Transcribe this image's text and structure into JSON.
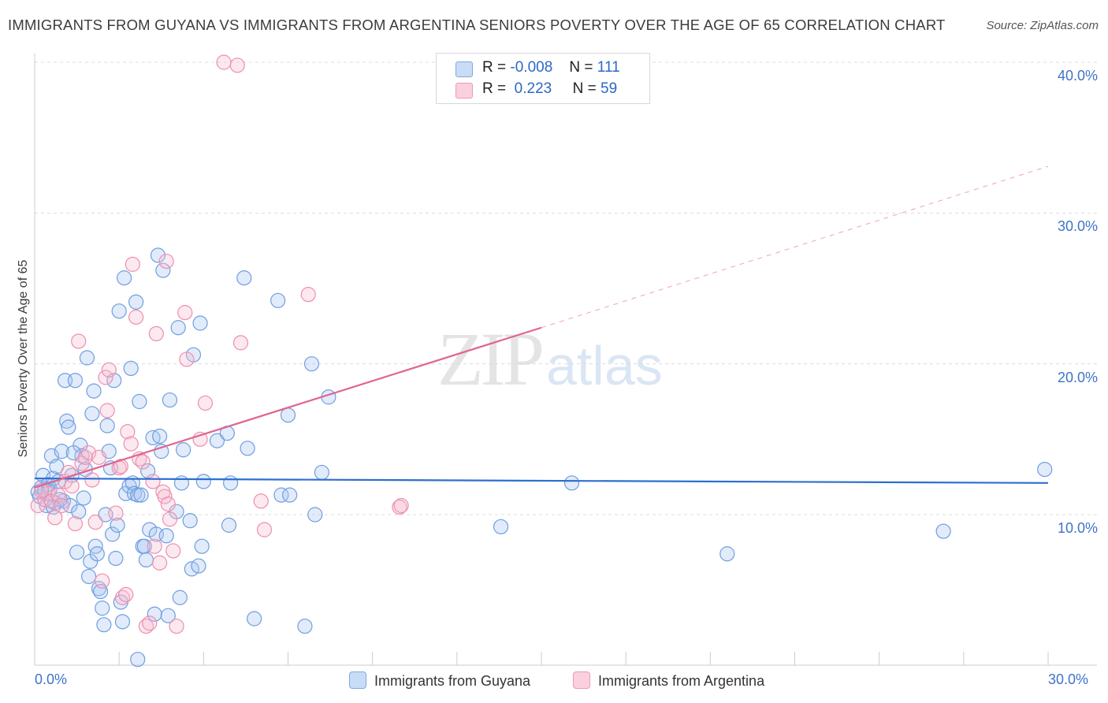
{
  "title": "IMMIGRANTS FROM GUYANA VS IMMIGRANTS FROM ARGENTINA SENIORS POVERTY OVER THE AGE OF 65 CORRELATION CHART",
  "source": "Source: ZipAtlas.com",
  "watermark": {
    "zip": "ZIP",
    "atlas": "atlas"
  },
  "colors": {
    "guyana_fill": "#a9c6f0",
    "guyana_stroke": "#6f9ee0",
    "guyana_line": "#2d6fd0",
    "argentina_fill": "#f6bcd0",
    "argentina_stroke": "#ec8fb0",
    "argentina_line": "#e0658f",
    "tick_text": "#3f73c8"
  },
  "legend": {
    "rows": [
      {
        "r_label": "R =",
        "r_value": "-0.008",
        "n_label": "N =",
        "n_value": "111"
      },
      {
        "r_label": "R =",
        "r_value": " 0.223",
        "n_label": "N =",
        "n_value": "59"
      }
    ]
  },
  "chart_data": {
    "type": "scatter",
    "title": "IMMIGRANTS FROM GUYANA VS IMMIGRANTS FROM ARGENTINA SENIORS POVERTY OVER THE AGE OF 65 CORRELATION CHART",
    "xlabel": "",
    "ylabel": "Seniors Poverty Over the Age of 65",
    "xlim": [
      0,
      30
    ],
    "ylim": [
      0,
      40
    ],
    "x_tick_labels": [
      "0.0%",
      "30.0%"
    ],
    "y_ticks": [
      10,
      20,
      30,
      40
    ],
    "y_tick_labels": [
      "10.0%",
      "20.0%",
      "30.0%",
      "40.0%"
    ],
    "grid": true,
    "legend_position": "bottom",
    "series": [
      {
        "name": "Immigrants from Guyana",
        "r": -0.008,
        "n": 111,
        "trend": {
          "x": [
            0,
            30
          ],
          "y": [
            12.4,
            12.1
          ]
        },
        "points": [
          [
            0.1,
            11.5
          ],
          [
            0.15,
            11.2
          ],
          [
            0.2,
            11.8
          ],
          [
            0.25,
            12.6
          ],
          [
            0.3,
            11.6
          ],
          [
            0.35,
            10.6
          ],
          [
            0.4,
            12.0
          ],
          [
            0.45,
            11.7
          ],
          [
            0.5,
            13.9
          ],
          [
            0.55,
            12.4
          ],
          [
            0.6,
            10.8
          ],
          [
            0.65,
            13.2
          ],
          [
            0.7,
            12.2
          ],
          [
            0.8,
            14.2
          ],
          [
            0.85,
            10.9
          ],
          [
            0.9,
            18.9
          ],
          [
            0.95,
            16.2
          ],
          [
            1.0,
            15.8
          ],
          [
            1.05,
            10.6
          ],
          [
            1.1,
            12.6
          ],
          [
            1.2,
            18.9
          ],
          [
            1.25,
            7.5
          ],
          [
            1.3,
            10.2
          ],
          [
            1.35,
            14.6
          ],
          [
            1.4,
            13.9
          ],
          [
            1.45,
            11.1
          ],
          [
            1.5,
            13.0
          ],
          [
            1.55,
            20.4
          ],
          [
            1.6,
            5.9
          ],
          [
            1.65,
            6.9
          ],
          [
            1.7,
            16.7
          ],
          [
            1.75,
            18.2
          ],
          [
            1.8,
            7.9
          ],
          [
            1.85,
            7.4
          ],
          [
            1.9,
            5.1
          ],
          [
            1.95,
            4.9
          ],
          [
            2.0,
            3.8
          ],
          [
            2.05,
            2.7
          ],
          [
            2.1,
            10.0
          ],
          [
            2.15,
            15.9
          ],
          [
            2.2,
            14.2
          ],
          [
            2.3,
            8.7
          ],
          [
            2.35,
            18.9
          ],
          [
            2.4,
            7.1
          ],
          [
            2.45,
            9.3
          ],
          [
            2.5,
            23.5
          ],
          [
            2.55,
            4.2
          ],
          [
            2.6,
            2.9
          ],
          [
            2.65,
            25.7
          ],
          [
            2.7,
            11.4
          ],
          [
            2.8,
            11.9
          ],
          [
            2.85,
            19.7
          ],
          [
            2.9,
            12.1
          ],
          [
            2.95,
            11.4
          ],
          [
            3.0,
            24.1
          ],
          [
            3.05,
            11.3
          ],
          [
            3.1,
            17.5
          ],
          [
            3.15,
            11.3
          ],
          [
            3.2,
            7.9
          ],
          [
            3.25,
            7.9
          ],
          [
            3.3,
            7.0
          ],
          [
            3.35,
            12.9
          ],
          [
            3.4,
            9.0
          ],
          [
            3.5,
            15.1
          ],
          [
            3.55,
            3.4
          ],
          [
            3.6,
            8.7
          ],
          [
            3.65,
            27.2
          ],
          [
            3.7,
            15.2
          ],
          [
            3.75,
            14.2
          ],
          [
            3.8,
            26.2
          ],
          [
            3.9,
            8.6
          ],
          [
            3.95,
            3.3
          ],
          [
            4.0,
            17.6
          ],
          [
            4.2,
            10.2
          ],
          [
            4.25,
            22.4
          ],
          [
            4.3,
            4.5
          ],
          [
            4.35,
            12.1
          ],
          [
            4.4,
            14.3
          ],
          [
            4.6,
            9.6
          ],
          [
            4.65,
            6.4
          ],
          [
            4.7,
            20.6
          ],
          [
            4.85,
            6.6
          ],
          [
            4.9,
            22.7
          ],
          [
            4.95,
            7.9
          ],
          [
            5.0,
            12.2
          ],
          [
            5.4,
            14.9
          ],
          [
            5.7,
            15.4
          ],
          [
            5.75,
            9.3
          ],
          [
            5.8,
            12.1
          ],
          [
            6.2,
            25.7
          ],
          [
            6.3,
            14.4
          ],
          [
            6.5,
            3.1
          ],
          [
            7.2,
            24.2
          ],
          [
            7.3,
            11.3
          ],
          [
            7.55,
            11.3
          ],
          [
            7.5,
            16.6
          ],
          [
            8.0,
            2.6
          ],
          [
            8.2,
            20.0
          ],
          [
            8.3,
            10.0
          ],
          [
            8.5,
            12.8
          ],
          [
            8.7,
            17.8
          ],
          [
            13.8,
            9.2
          ],
          [
            15.9,
            12.1
          ],
          [
            20.5,
            7.4
          ],
          [
            26.9,
            8.9
          ],
          [
            29.9,
            13.0
          ],
          [
            3.05,
            0.4
          ],
          [
            1.15,
            14.1
          ],
          [
            0.75,
            11.0
          ],
          [
            0.55,
            10.5
          ],
          [
            2.25,
            13.1
          ]
        ]
      },
      {
        "name": "Immigrants from Argentina",
        "r": 0.223,
        "n": 59,
        "trend": {
          "x": [
            0,
            15
          ],
          "y": [
            11.8,
            22.4
          ]
        },
        "trend_extension": {
          "x": [
            15,
            30
          ],
          "y": [
            22.4,
            33.1
          ]
        },
        "points": [
          [
            0.1,
            10.6
          ],
          [
            0.3,
            11.0
          ],
          [
            0.4,
            11.4
          ],
          [
            0.5,
            10.9
          ],
          [
            0.6,
            9.8
          ],
          [
            0.7,
            11.3
          ],
          [
            0.8,
            10.6
          ],
          [
            0.9,
            12.2
          ],
          [
            1.0,
            12.8
          ],
          [
            1.1,
            11.9
          ],
          [
            1.2,
            9.4
          ],
          [
            1.3,
            21.5
          ],
          [
            1.4,
            13.4
          ],
          [
            1.5,
            13.8
          ],
          [
            1.6,
            14.1
          ],
          [
            1.7,
            12.3
          ],
          [
            1.8,
            9.5
          ],
          [
            1.9,
            13.8
          ],
          [
            2.0,
            5.6
          ],
          [
            2.1,
            19.1
          ],
          [
            2.15,
            16.9
          ],
          [
            2.2,
            19.6
          ],
          [
            2.4,
            10.1
          ],
          [
            2.5,
            13.1
          ],
          [
            2.55,
            13.2
          ],
          [
            2.6,
            4.5
          ],
          [
            2.7,
            4.7
          ],
          [
            2.75,
            15.5
          ],
          [
            2.85,
            14.7
          ],
          [
            2.9,
            26.6
          ],
          [
            3.0,
            23.1
          ],
          [
            3.1,
            13.7
          ],
          [
            3.2,
            13.5
          ],
          [
            3.3,
            2.6
          ],
          [
            3.4,
            2.8
          ],
          [
            3.5,
            12.2
          ],
          [
            3.55,
            7.9
          ],
          [
            3.6,
            22.0
          ],
          [
            3.7,
            6.8
          ],
          [
            3.8,
            11.5
          ],
          [
            3.85,
            11.2
          ],
          [
            3.9,
            26.8
          ],
          [
            3.95,
            10.7
          ],
          [
            4.0,
            9.7
          ],
          [
            4.1,
            7.6
          ],
          [
            4.2,
            2.6
          ],
          [
            4.45,
            23.4
          ],
          [
            4.5,
            20.3
          ],
          [
            4.9,
            15.0
          ],
          [
            5.05,
            17.4
          ],
          [
            6.1,
            21.4
          ],
          [
            6.7,
            10.9
          ],
          [
            6.8,
            9.0
          ],
          [
            8.1,
            24.6
          ],
          [
            10.8,
            10.5
          ],
          [
            10.85,
            10.6
          ],
          [
            6.0,
            39.8
          ],
          [
            5.6,
            40.0
          ],
          [
            0.2,
            11.6
          ]
        ]
      }
    ]
  },
  "bottom_legend": [
    "Immigrants from Guyana",
    "Immigrants from Argentina"
  ]
}
